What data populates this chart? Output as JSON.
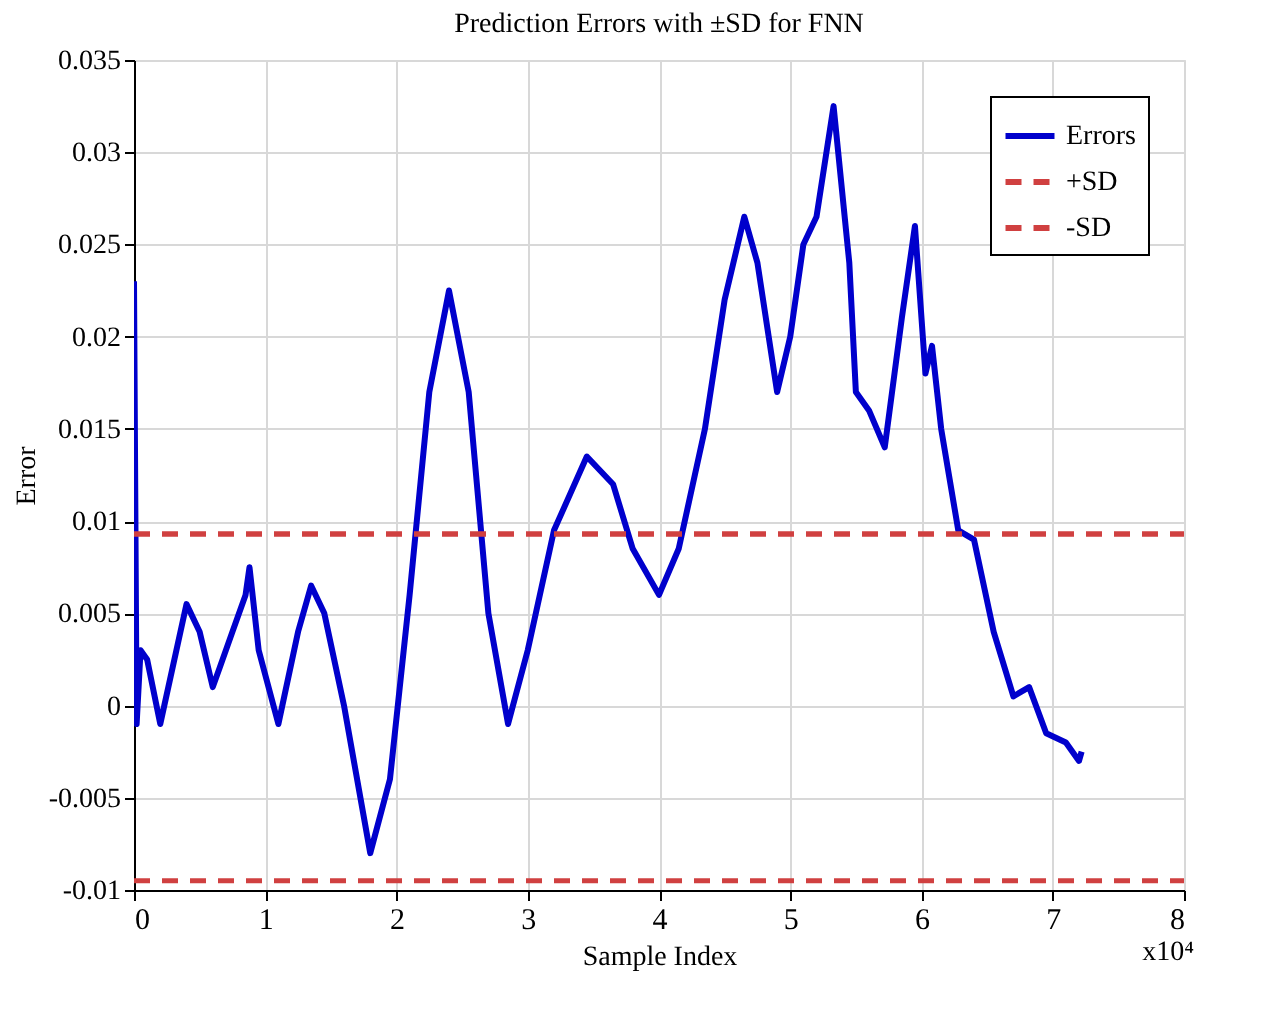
{
  "chart_data": {
    "type": "line",
    "title": "Prediction Errors with ±SD for FNN",
    "xlabel": "Sample Index",
    "ylabel": "Error",
    "annotations": [
      "x10⁴"
    ],
    "xlim": [
      0,
      8
    ],
    "xticks": [
      0,
      1,
      2,
      3,
      4,
      5,
      6,
      7,
      8
    ],
    "ylim": [
      -0.01,
      0.035
    ],
    "yticks": [
      -0.01,
      -0.005,
      0,
      0.005,
      0.01,
      0.015,
      0.02,
      0.025,
      0.03,
      0.035
    ],
    "grid": true,
    "legend": "top right",
    "series": [
      {
        "name": "Errors",
        "color": "#0000cc",
        "type": "line",
        "line_style": "solid",
        "x": [
          0,
          0.02,
          0.05,
          0.1,
          0.2,
          0.4,
          0.5,
          0.6,
          0.65,
          0.75,
          0.85,
          0.88,
          0.95,
          1.1,
          1.25,
          1.35,
          1.45,
          1.6,
          1.8,
          1.95,
          2.1,
          2.25,
          2.4,
          2.55,
          2.7,
          2.85,
          3.0,
          3.2,
          3.45,
          3.65,
          3.8,
          4.0,
          4.15,
          4.35,
          4.5,
          4.65,
          4.75,
          4.9,
          5.0,
          5.1,
          5.2,
          5.33,
          5.45,
          5.5,
          5.6,
          5.72,
          5.85,
          5.95,
          6.03,
          6.08,
          6.15,
          6.28,
          6.4,
          6.55,
          6.7,
          6.82,
          6.95,
          7.1,
          7.2,
          7.22
        ],
        "values": [
          0.023,
          -0.001,
          0.003,
          0.0025,
          -0.001,
          0.0055,
          0.004,
          0.001,
          0.002,
          0.004,
          0.006,
          0.0075,
          0.003,
          -0.001,
          0.004,
          0.0065,
          0.005,
          0.0,
          -0.008,
          -0.004,
          0.006,
          0.017,
          0.0225,
          0.017,
          0.005,
          -0.001,
          0.003,
          0.0095,
          0.0135,
          0.012,
          0.0085,
          0.006,
          0.0085,
          0.015,
          0.022,
          0.0265,
          0.024,
          0.017,
          0.02,
          0.025,
          0.0265,
          0.0325,
          0.024,
          0.017,
          0.016,
          0.014,
          0.021,
          0.026,
          0.018,
          0.0195,
          0.015,
          0.0095,
          0.009,
          0.004,
          0.0005,
          0.001,
          -0.0015,
          -0.002,
          -0.003,
          -0.0025
        ]
      },
      {
        "name": "+SD",
        "color": "#d04040",
        "type": "line",
        "line_style": "dashed",
        "x": [
          0,
          8
        ],
        "values": [
          0.0093,
          0.0093
        ]
      },
      {
        "name": "-SD",
        "color": "#d04040",
        "type": "line",
        "line_style": "dashed",
        "x": [
          0,
          8
        ],
        "values": [
          -0.0095,
          -0.0095
        ]
      }
    ]
  }
}
